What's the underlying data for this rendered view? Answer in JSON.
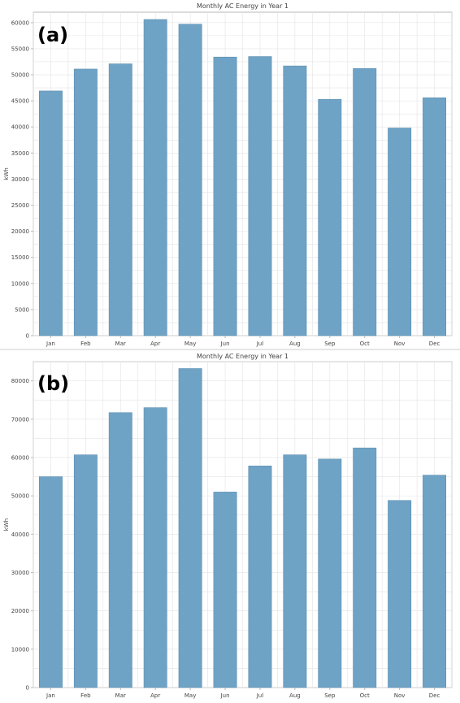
{
  "colors": {
    "bar": "#6fa3c5",
    "bar_edge": "#5d8fb1",
    "grid": "#e4e4e4",
    "axis": "#b8b8b8",
    "text": "#444444"
  },
  "chart_data": [
    {
      "panel_label": "(a)",
      "type": "bar",
      "title": "Monthly AC Energy in Year 1",
      "xlabel": "",
      "ylabel": "kWh",
      "categories": [
        "Jan",
        "Feb",
        "Mar",
        "Apr",
        "May",
        "Jun",
        "Jul",
        "Aug",
        "Sep",
        "Oct",
        "Nov",
        "Dec"
      ],
      "values": [
        46900,
        51100,
        52100,
        60600,
        59700,
        53400,
        53500,
        51700,
        45300,
        51200,
        39800,
        45600
      ],
      "ylim": [
        0,
        62000
      ],
      "yticks": [
        0,
        5000,
        10000,
        15000,
        20000,
        25000,
        30000,
        35000,
        40000,
        45000,
        50000,
        55000,
        60000
      ],
      "grid": true
    },
    {
      "panel_label": "(b)",
      "type": "bar",
      "title": "Monthly AC Energy in Year 1",
      "xlabel": "",
      "ylabel": "kWh",
      "categories": [
        "Jan",
        "Feb",
        "Mar",
        "Apr",
        "May",
        "Jun",
        "Jul",
        "Aug",
        "Sep",
        "Oct",
        "Nov",
        "Dec"
      ],
      "values": [
        55000,
        60700,
        71700,
        73000,
        83200,
        51000,
        57800,
        60700,
        59600,
        62500,
        48800,
        55400
      ],
      "ylim": [
        0,
        85000
      ],
      "yticks": [
        0,
        10000,
        20000,
        30000,
        40000,
        50000,
        60000,
        70000,
        80000
      ],
      "grid": true
    }
  ]
}
